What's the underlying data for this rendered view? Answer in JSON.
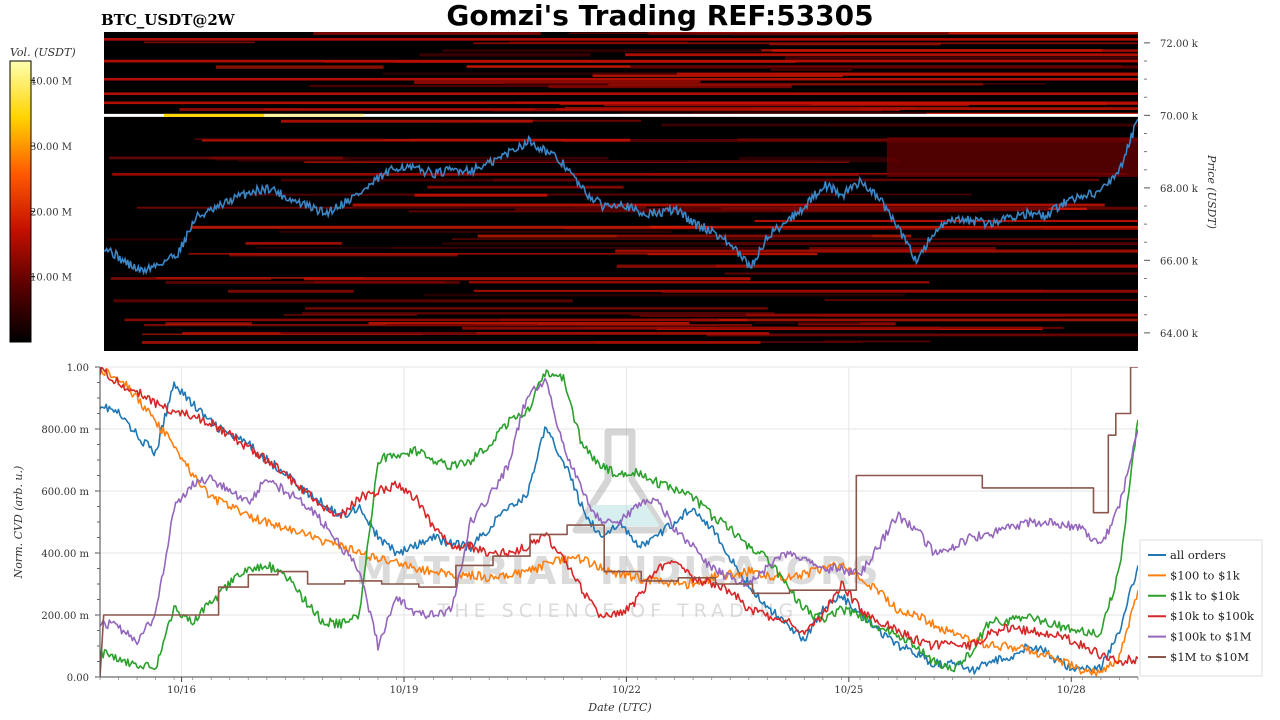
{
  "header": {
    "symbol": "BTC_USDT@2W",
    "title": "Gomzi's Trading REF:53305"
  },
  "watermark": {
    "line1": "MATERIAL INDICATORS",
    "line2": "THE SCIENCE OF TRADING"
  },
  "chart_data": [
    {
      "type": "heatmap",
      "title": "",
      "ylabel": "Price (USDT)",
      "ylim": [
        63500,
        72300
      ],
      "yticks": [
        64000,
        66000,
        68000,
        70000,
        72000
      ],
      "yticklabels": [
        "64.00 k",
        "66.00 k",
        "68.00 k",
        "70.00 k",
        "72.00 k"
      ],
      "colorbar": {
        "label": "Vol. (USDT)",
        "range": [
          0,
          43000000
        ],
        "ticks": [
          10000000,
          20000000,
          30000000,
          40000000
        ],
        "ticklabels": [
          "10.00 M",
          "20.00 M",
          "30.00 M",
          "40.00 M"
        ],
        "colors": [
          "#000000",
          "#5a0000",
          "#c41000",
          "#ff5a00",
          "#ffd400",
          "#ffffb0"
        ]
      },
      "price_series": {
        "color": "#3b86c6",
        "x": [
          0,
          0.25,
          0.5,
          0.75,
          1.0,
          1.25,
          1.5,
          1.75,
          2.0,
          2.25,
          2.5,
          2.75,
          3.0,
          3.25,
          3.5,
          3.75,
          4.0,
          4.25,
          4.5,
          4.75,
          5.0,
          5.25,
          5.5,
          5.75,
          6.0,
          6.25,
          6.5,
          6.75,
          7.0,
          7.25,
          7.5,
          7.75,
          8.0,
          8.25,
          8.5,
          8.75,
          9.0,
          9.25,
          9.5,
          9.75,
          10.0,
          10.25,
          10.5,
          10.75,
          11.0,
          11.25,
          11.5,
          11.75,
          12.0,
          12.25,
          12.5,
          12.75,
          13.0,
          13.25,
          13.5,
          13.75,
          14.0
        ],
        "y": [
          66400,
          66000,
          65700,
          65900,
          66200,
          67200,
          67400,
          67700,
          67900,
          68000,
          67700,
          67500,
          67300,
          67600,
          67900,
          68300,
          68600,
          68500,
          68400,
          68500,
          68500,
          68700,
          69000,
          69300,
          69000,
          68600,
          67900,
          67500,
          67600,
          67300,
          67300,
          67400,
          67000,
          66800,
          66400,
          65800,
          66700,
          67100,
          67500,
          68100,
          67800,
          68200,
          67700,
          66900,
          66000,
          66800,
          67100,
          67100,
          67000,
          67200,
          67300,
          67200,
          67600,
          67800,
          67900,
          68500,
          69900
        ]
      },
      "bright_levels": [
        70000
      ]
    },
    {
      "type": "line",
      "xlabel": "Date (UTC)",
      "ylabel": "Norm. CVD (arb. u.)",
      "ylim": [
        0,
        1
      ],
      "yticks": [
        0,
        0.2,
        0.4,
        0.6,
        0.8,
        1.0
      ],
      "yticklabels": [
        "0.00",
        "200.00 m",
        "400.00 m",
        "600.00 m",
        "800.00 m",
        "1.00"
      ],
      "xlim": [
        0,
        14
      ],
      "xticks": [
        1.1,
        4.1,
        7.1,
        10.1,
        13.1
      ],
      "xticklabels": [
        "10/16",
        "10/19",
        "10/22",
        "10/25",
        "10/28"
      ],
      "legend_position": "lower-right",
      "series": [
        {
          "name": "all orders",
          "color": "#1f77b4",
          "x": [
            0,
            0.25,
            0.5,
            0.75,
            1.0,
            1.25,
            1.5,
            1.75,
            2.0,
            2.25,
            2.5,
            2.75,
            3.0,
            3.25,
            3.5,
            3.75,
            4.0,
            4.25,
            4.5,
            4.75,
            5.0,
            5.25,
            5.5,
            5.75,
            6.0,
            6.25,
            6.5,
            6.75,
            7.0,
            7.25,
            7.5,
            7.75,
            8.0,
            8.25,
            8.5,
            8.75,
            9.0,
            9.25,
            9.5,
            9.75,
            10.0,
            10.25,
            10.5,
            10.75,
            11.0,
            11.25,
            11.5,
            11.75,
            12.0,
            12.25,
            12.5,
            12.75,
            13.0,
            13.25,
            13.5,
            13.75,
            14.0
          ],
          "y": [
            0.88,
            0.85,
            0.78,
            0.72,
            0.95,
            0.88,
            0.82,
            0.78,
            0.75,
            0.7,
            0.66,
            0.6,
            0.56,
            0.52,
            0.55,
            0.45,
            0.4,
            0.42,
            0.45,
            0.43,
            0.42,
            0.48,
            0.55,
            0.58,
            0.8,
            0.7,
            0.55,
            0.45,
            0.5,
            0.42,
            0.45,
            0.5,
            0.55,
            0.48,
            0.38,
            0.3,
            0.22,
            0.18,
            0.12,
            0.22,
            0.26,
            0.2,
            0.15,
            0.1,
            0.08,
            0.04,
            0.05,
            0.02,
            0.05,
            0.06,
            0.1,
            0.08,
            0.04,
            0.02,
            0.03,
            0.15,
            0.36
          ]
        },
        {
          "name": "$100 to $1k",
          "color": "#ff7f0e",
          "x": [
            0,
            0.25,
            0.5,
            0.75,
            1.0,
            1.25,
            1.5,
            1.75,
            2.0,
            2.25,
            2.5,
            2.75,
            3.0,
            3.25,
            3.5,
            3.75,
            4.0,
            4.25,
            4.5,
            4.75,
            5.0,
            5.25,
            5.5,
            5.75,
            6.0,
            6.25,
            6.5,
            6.75,
            7.0,
            7.25,
            7.5,
            7.75,
            8.0,
            8.25,
            8.5,
            8.75,
            9.0,
            9.25,
            9.5,
            9.75,
            10.0,
            10.25,
            10.5,
            10.75,
            11.0,
            11.25,
            11.5,
            11.75,
            12.0,
            12.25,
            12.5,
            12.75,
            13.0,
            13.25,
            13.5,
            13.75,
            14.0
          ],
          "y": [
            0.99,
            0.97,
            0.9,
            0.82,
            0.75,
            0.65,
            0.58,
            0.55,
            0.52,
            0.5,
            0.48,
            0.46,
            0.44,
            0.42,
            0.4,
            0.38,
            0.37,
            0.35,
            0.34,
            0.33,
            0.33,
            0.32,
            0.33,
            0.34,
            0.36,
            0.38,
            0.38,
            0.35,
            0.33,
            0.32,
            0.31,
            0.3,
            0.3,
            0.32,
            0.33,
            0.34,
            0.33,
            0.32,
            0.33,
            0.35,
            0.36,
            0.32,
            0.28,
            0.22,
            0.2,
            0.17,
            0.14,
            0.12,
            0.1,
            0.1,
            0.09,
            0.07,
            0.05,
            0.02,
            0.01,
            0.06,
            0.28
          ]
        },
        {
          "name": "$1k to $10k",
          "color": "#2ca02c",
          "x": [
            0,
            0.25,
            0.5,
            0.75,
            1.0,
            1.25,
            1.5,
            1.75,
            2.0,
            2.25,
            2.5,
            2.75,
            3.0,
            3.25,
            3.5,
            3.75,
            4.0,
            4.25,
            4.5,
            4.75,
            5.0,
            5.25,
            5.5,
            5.75,
            6.0,
            6.25,
            6.5,
            6.75,
            7.0,
            7.25,
            7.5,
            7.75,
            8.0,
            8.25,
            8.5,
            8.75,
            9.0,
            9.25,
            9.5,
            9.75,
            10.0,
            10.25,
            10.5,
            10.75,
            11.0,
            11.25,
            11.5,
            11.75,
            12.0,
            12.25,
            12.5,
            12.75,
            13.0,
            13.25,
            13.5,
            13.75,
            14.0
          ],
          "y": [
            0.08,
            0.06,
            0.04,
            0.03,
            0.22,
            0.18,
            0.24,
            0.3,
            0.35,
            0.36,
            0.33,
            0.25,
            0.18,
            0.17,
            0.2,
            0.7,
            0.72,
            0.73,
            0.7,
            0.68,
            0.7,
            0.75,
            0.82,
            0.85,
            0.98,
            0.96,
            0.75,
            0.68,
            0.65,
            0.66,
            0.63,
            0.6,
            0.58,
            0.52,
            0.48,
            0.42,
            0.38,
            0.3,
            0.22,
            0.18,
            0.22,
            0.2,
            0.16,
            0.14,
            0.1,
            0.05,
            0.02,
            0.08,
            0.18,
            0.18,
            0.2,
            0.18,
            0.16,
            0.15,
            0.14,
            0.35,
            0.83
          ]
        },
        {
          "name": "$10k to $100k",
          "color": "#d62728",
          "x": [
            0,
            0.25,
            0.5,
            0.75,
            1.0,
            1.25,
            1.5,
            1.75,
            2.0,
            2.25,
            2.5,
            2.75,
            3.0,
            3.25,
            3.5,
            3.75,
            4.0,
            4.25,
            4.5,
            4.75,
            5.0,
            5.25,
            5.5,
            5.75,
            6.0,
            6.25,
            6.5,
            6.75,
            7.0,
            7.25,
            7.5,
            7.75,
            8.0,
            8.25,
            8.5,
            8.75,
            9.0,
            9.25,
            9.5,
            9.75,
            10.0,
            10.25,
            10.5,
            10.75,
            11.0,
            11.25,
            11.5,
            11.75,
            12.0,
            12.25,
            12.5,
            12.75,
            13.0,
            13.25,
            13.5,
            13.75,
            14.0
          ],
          "y": [
            0.99,
            0.95,
            0.92,
            0.88,
            0.86,
            0.84,
            0.82,
            0.78,
            0.74,
            0.7,
            0.65,
            0.6,
            0.55,
            0.52,
            0.58,
            0.6,
            0.62,
            0.58,
            0.48,
            0.42,
            0.42,
            0.4,
            0.4,
            0.42,
            0.46,
            0.38,
            0.28,
            0.2,
            0.2,
            0.25,
            0.35,
            0.38,
            0.32,
            0.3,
            0.28,
            0.22,
            0.2,
            0.18,
            0.15,
            0.2,
            0.3,
            0.22,
            0.18,
            0.15,
            0.12,
            0.1,
            0.12,
            0.1,
            0.14,
            0.16,
            0.15,
            0.14,
            0.13,
            0.1,
            0.07,
            0.05,
            0.06
          ]
        },
        {
          "name": "$100k to $1M",
          "color": "#9467bd",
          "x": [
            0,
            0.25,
            0.5,
            0.75,
            1.0,
            1.25,
            1.5,
            1.75,
            2.0,
            2.25,
            2.5,
            2.75,
            3.0,
            3.25,
            3.5,
            3.75,
            4.0,
            4.25,
            4.5,
            4.75,
            5.0,
            5.25,
            5.5,
            5.75,
            6.0,
            6.25,
            6.5,
            6.75,
            7.0,
            7.25,
            7.5,
            7.75,
            8.0,
            8.25,
            8.5,
            8.75,
            9.0,
            9.25,
            9.5,
            9.75,
            10.0,
            10.25,
            10.5,
            10.75,
            11.0,
            11.25,
            11.5,
            11.75,
            12.0,
            12.25,
            12.5,
            12.75,
            13.0,
            13.25,
            13.5,
            13.75,
            14.0
          ],
          "y": [
            0.18,
            0.16,
            0.12,
            0.2,
            0.55,
            0.62,
            0.64,
            0.6,
            0.56,
            0.64,
            0.6,
            0.56,
            0.5,
            0.42,
            0.35,
            0.1,
            0.26,
            0.2,
            0.2,
            0.22,
            0.5,
            0.58,
            0.68,
            0.9,
            0.96,
            0.75,
            0.6,
            0.5,
            0.5,
            0.55,
            0.58,
            0.48,
            0.42,
            0.35,
            0.32,
            0.3,
            0.35,
            0.4,
            0.38,
            0.35,
            0.35,
            0.33,
            0.42,
            0.52,
            0.48,
            0.4,
            0.42,
            0.45,
            0.46,
            0.48,
            0.5,
            0.5,
            0.49,
            0.48,
            0.42,
            0.55,
            0.8
          ]
        },
        {
          "name": "$1M to $10M",
          "color": "#8c564b",
          "x": [
            0,
            0.05,
            0.4,
            0.8,
            1.2,
            1.6,
            1.6,
            2.0,
            2.0,
            2.4,
            2.4,
            2.8,
            2.8,
            3.3,
            3.3,
            3.8,
            3.8,
            4.3,
            4.3,
            4.8,
            4.8,
            5.3,
            5.3,
            5.8,
            5.8,
            6.3,
            6.3,
            6.8,
            6.8,
            7.3,
            7.3,
            7.8,
            7.8,
            8.3,
            8.3,
            8.8,
            8.8,
            9.3,
            9.3,
            9.8,
            9.8,
            10.2,
            10.2,
            11.0,
            11.0,
            11.9,
            11.9,
            12.6,
            12.6,
            13.4,
            13.4,
            13.6,
            13.6,
            13.7,
            13.7,
            13.9,
            13.9,
            14.0
          ],
          "y": [
            0.0,
            0.2,
            0.2,
            0.2,
            0.2,
            0.2,
            0.29,
            0.29,
            0.33,
            0.33,
            0.34,
            0.34,
            0.3,
            0.3,
            0.31,
            0.31,
            0.3,
            0.3,
            0.29,
            0.29,
            0.36,
            0.36,
            0.39,
            0.39,
            0.46,
            0.46,
            0.49,
            0.49,
            0.34,
            0.34,
            0.31,
            0.31,
            0.32,
            0.32,
            0.3,
            0.3,
            0.27,
            0.27,
            0.28,
            0.28,
            0.28,
            0.28,
            0.65,
            0.65,
            0.65,
            0.65,
            0.61,
            0.61,
            0.61,
            0.61,
            0.53,
            0.53,
            0.78,
            0.78,
            0.85,
            0.85,
            1.0,
            1.0
          ]
        }
      ]
    }
  ]
}
